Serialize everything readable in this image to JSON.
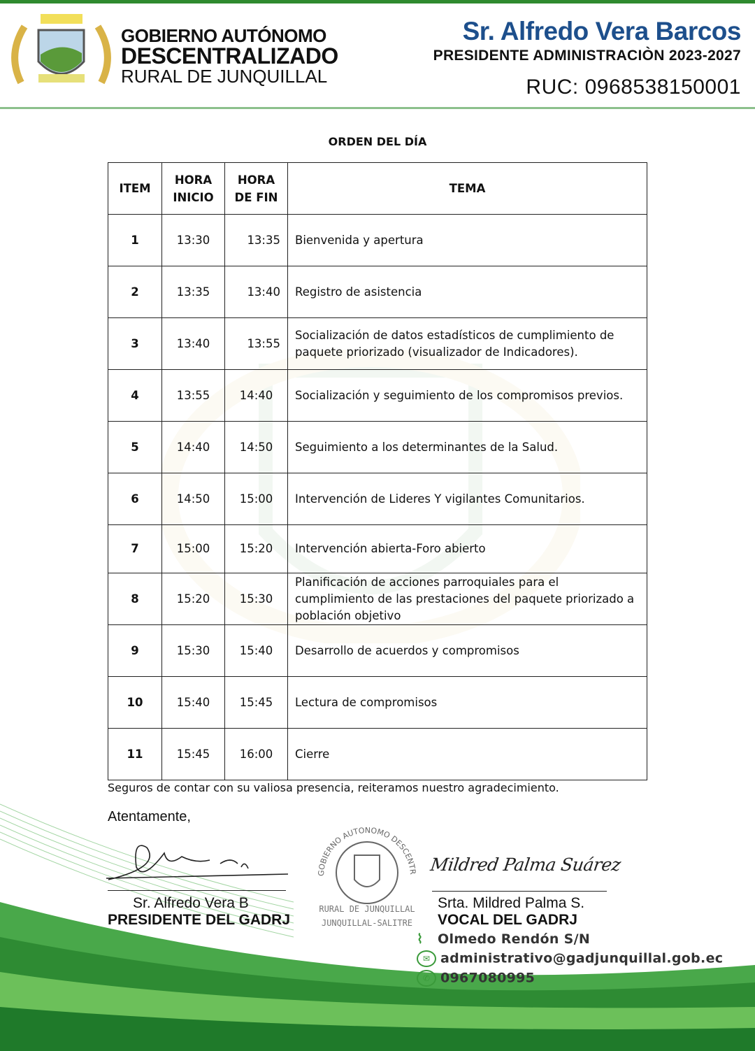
{
  "header": {
    "org_line1": "GOBIERNO AUTÓNOMO",
    "org_line2": "DESCENTRALIZADO",
    "org_line3": "RURAL DE JUNQUILLAL",
    "president_name": "Sr. Alfredo Vera Barcos",
    "president_role": "PRESIDENTE ADMINISTRACIÒN 2023-2027",
    "ruc": "RUC: 0968538150001",
    "brand_color": "#2f8a2f",
    "name_color": "#1d4f8c"
  },
  "document": {
    "title": "ORDEN DEL DÍA",
    "columns": [
      "ITEM",
      "HORA INICIO",
      "HORA DE FIN",
      "TEMA"
    ],
    "rows": [
      {
        "item": "1",
        "start": "13:30",
        "end": "13:35",
        "topic": "Bienvenida y apertura"
      },
      {
        "item": "2",
        "start": "13:35",
        "end": "13:40",
        "topic": "Registro de asistencia"
      },
      {
        "item": "3",
        "start": "13:40",
        "end": "13:55",
        "topic": "Socialización de datos estadísticos de cumplimiento de paquete priorizado (visualizador de Indicadores)."
      },
      {
        "item": "4",
        "start": "13:55",
        "end": "14:40",
        "topic": "Socialización y seguimiento de los compromisos previos."
      },
      {
        "item": "5",
        "start": "14:40",
        "end": "14:50",
        "topic": "Seguimiento a los determinantes de la Salud."
      },
      {
        "item": "6",
        "start": "14:50",
        "end": "15:00",
        "topic": "Intervención de Lideres Y vigilantes Comunitarios."
      },
      {
        "item": "7",
        "start": "15:00",
        "end": "15:20",
        "topic": "Intervención abierta-Foro abierto"
      },
      {
        "item": "8",
        "start": "15:20",
        "end": "15:30",
        "topic": "Planificación de acciones parroquiales para el cumplimiento de las prestaciones del paquete priorizado a población objetivo"
      },
      {
        "item": "9",
        "start": "15:30",
        "end": "15:40",
        "topic": "Desarrollo de acuerdos y compromisos"
      },
      {
        "item": "10",
        "start": "15:40",
        "end": "15:45",
        "topic": "Lectura de compromisos"
      },
      {
        "item": "11",
        "start": "15:45",
        "end": "16:00",
        "topic": "Cierre"
      }
    ],
    "closing": "Seguros de contar con su valiosa presencia, reiteramos nuestro agradecimiento.",
    "salutation": "Atentamente,"
  },
  "signatures": {
    "left": {
      "name": "Sr. Alfredo Vera B",
      "role": "PRESIDENTE DEL GADRJ",
      "handwriting": "Alfredo Vera B."
    },
    "right": {
      "name": "Srta. Mildred Palma S.",
      "role": "VOCAL DEL GADRJ",
      "handwriting": "Mildred Palma Suárez"
    },
    "seal": {
      "ring": "GOBIERNO AUTONOMO DESCENTRALIZADO",
      "line1": "RURAL DE JUNQUILLAL",
      "line2": "JUNQUILLAL-SALITRE"
    }
  },
  "footer": {
    "address": "Olmedo Rendón S/N",
    "email": "administrativo@gadjunquillal.gob.ec",
    "phone": "0967080995",
    "icons": [
      "location-icon",
      "mail-icon",
      "phone-icon"
    ]
  }
}
